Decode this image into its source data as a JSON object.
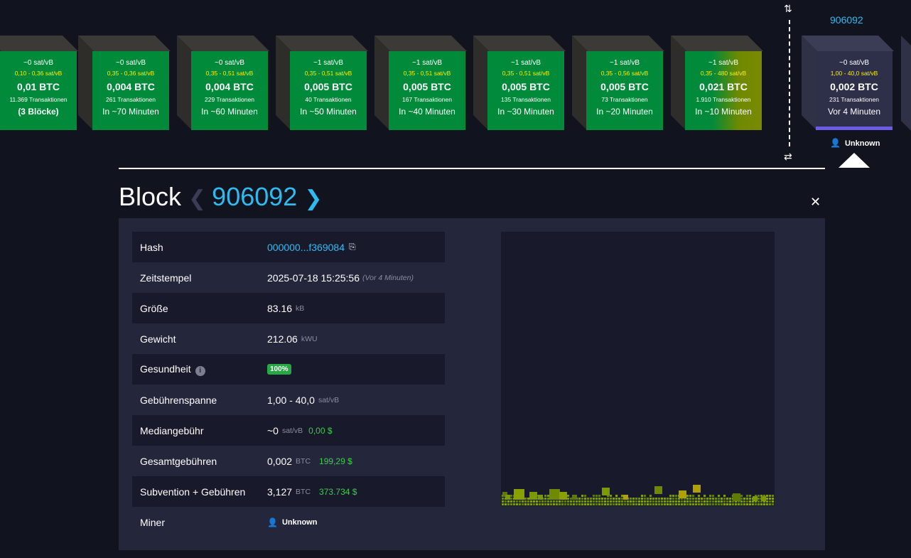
{
  "strip": {
    "pending_blocks": [
      {
        "fee": "~0 sat/vB",
        "range": "0,10 - 0,36 sat/vB",
        "btc": "0,01 BTC",
        "tx": "11.369 Transaktionen",
        "eta": "(3 Blöcke)"
      },
      {
        "fee": "~0 sat/vB",
        "range": "0,35 - 0,36 sat/vB",
        "btc": "0,004 BTC",
        "tx": "261 Transaktionen",
        "eta": "In ~70 Minuten"
      },
      {
        "fee": "~0 sat/vB",
        "range": "0,35 - 0,51 sat/vB",
        "btc": "0,004 BTC",
        "tx": "229 Transaktionen",
        "eta": "In ~60 Minuten"
      },
      {
        "fee": "~1 sat/vB",
        "range": "0,35 - 0,51 sat/vB",
        "btc": "0,005 BTC",
        "tx": "40 Transaktionen",
        "eta": "In ~50 Minuten"
      },
      {
        "fee": "~1 sat/vB",
        "range": "0,35 - 0,51 sat/vB",
        "btc": "0,005 BTC",
        "tx": "167 Transaktionen",
        "eta": "In ~40 Minuten"
      },
      {
        "fee": "~1 sat/vB",
        "range": "0,35 - 0,51 sat/vB",
        "btc": "0,005 BTC",
        "tx": "135 Transaktionen",
        "eta": "In ~30 Minuten"
      },
      {
        "fee": "~1 sat/vB",
        "range": "0,35 - 0,56 sat/vB",
        "btc": "0,005 BTC",
        "tx": "73 Transaktionen",
        "eta": "In ~20 Minuten"
      },
      {
        "fee": "~1 sat/vB",
        "range": "0,35 - 480 sat/vB",
        "btc": "0,021 BTC",
        "tx": "1.910 Transaktionen",
        "eta": "In ~10 Minuten"
      }
    ],
    "mined_block": {
      "height": "906092",
      "fee": "~0 sat/vB",
      "range": "1,00 - 40,0 sat/vB",
      "btc": "0,002 BTC",
      "tx": "231 Transaktionen",
      "eta": "Vor 4 Minuten",
      "miner": "Unknown"
    }
  },
  "block": {
    "title": "Block",
    "height": "906092",
    "rows": {
      "hash": {
        "label": "Hash",
        "value": "000000...f369084"
      },
      "timestamp": {
        "label": "Zeitstempel",
        "value": "2025-07-18 15:25:56",
        "relative": "(Vor 4 Minuten)"
      },
      "size": {
        "label": "Größe",
        "value": "83.16",
        "unit": "kB"
      },
      "weight": {
        "label": "Gewicht",
        "value": "212.06",
        "unit": "kWU"
      },
      "health": {
        "label": "Gesundheit",
        "value": "100%"
      },
      "fee_span": {
        "label": "Gebührenspanne",
        "value": "1,00 - 40,0",
        "unit": "sat/vB"
      },
      "median_fee": {
        "label": "Mediangebühr",
        "value": "~0",
        "unit": "sat/vB",
        "usd": "0,00 $"
      },
      "total_fees": {
        "label": "Gesamtgebühren",
        "value": "0,002",
        "unit": "BTC",
        "usd": "199,29 $"
      },
      "subsidy_fees": {
        "label": "Subvention + Gebühren",
        "value": "3,127",
        "unit": "BTC",
        "usd": "373.734 $"
      },
      "miner": {
        "label": "Miner",
        "value": "Unknown"
      }
    }
  },
  "colors": {
    "accent": "#2dbbf0",
    "pending_green": "#008a3a",
    "fee_yellow": "#ffee00",
    "usd_green": "#3bcc49",
    "mined_bar": "#6c5ce7",
    "panel_bg": "#24263b",
    "page_bg": "#11131f"
  }
}
